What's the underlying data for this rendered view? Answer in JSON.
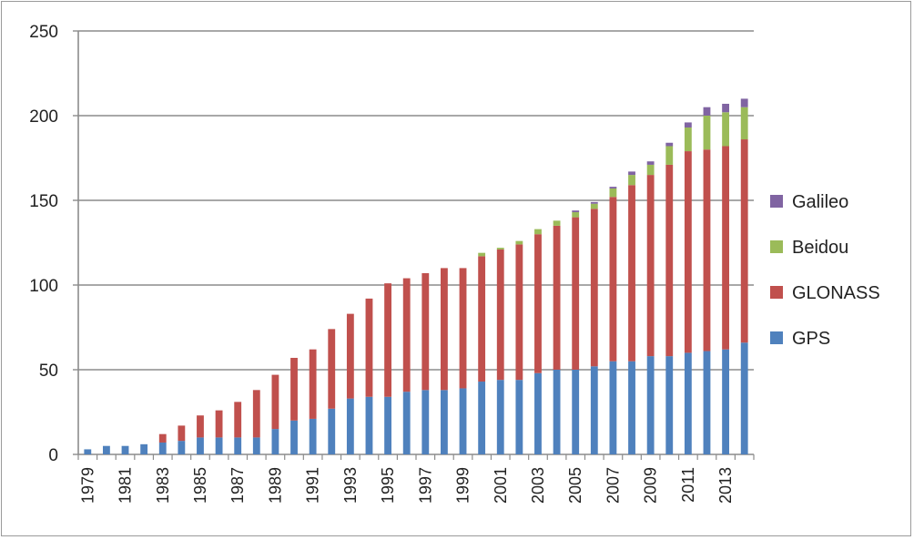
{
  "chart_data": {
    "type": "bar",
    "stacked": true,
    "categories": [
      "1979",
      "1980",
      "1981",
      "1982",
      "1983",
      "1984",
      "1985",
      "1986",
      "1987",
      "1988",
      "1989",
      "1990",
      "1991",
      "1992",
      "1993",
      "1994",
      "1995",
      "1996",
      "1997",
      "1998",
      "1999",
      "2000",
      "2001",
      "2002",
      "2003",
      "2004",
      "2005",
      "2006",
      "2007",
      "2008",
      "2009",
      "2010",
      "2011",
      "2012",
      "2013",
      "2014"
    ],
    "x_tick_labels": [
      "1979",
      "1981",
      "1983",
      "1985",
      "1987",
      "1989",
      "1991",
      "1993",
      "1995",
      "1997",
      "1999",
      "2001",
      "2003",
      "2005",
      "2007",
      "2009",
      "2011",
      "2013"
    ],
    "series": [
      {
        "name": "GPS",
        "color": "#4f81bd",
        "values": [
          3,
          5,
          5,
          6,
          7,
          8,
          10,
          10,
          10,
          10,
          15,
          20,
          21,
          27,
          33,
          34,
          34,
          37,
          38,
          38,
          39,
          43,
          44,
          44,
          48,
          50,
          50,
          52,
          55,
          55,
          58,
          58,
          60,
          61,
          62,
          66
        ]
      },
      {
        "name": "GLONASS",
        "color": "#c0504d",
        "values": [
          0,
          0,
          0,
          0,
          5,
          9,
          13,
          16,
          21,
          28,
          32,
          37,
          41,
          47,
          50,
          58,
          67,
          67,
          69,
          72,
          71,
          74,
          77,
          80,
          82,
          85,
          90,
          93,
          97,
          104,
          107,
          113,
          119,
          119,
          120,
          120
        ]
      },
      {
        "name": "Beidou",
        "color": "#9bbb59",
        "values": [
          0,
          0,
          0,
          0,
          0,
          0,
          0,
          0,
          0,
          0,
          0,
          0,
          0,
          0,
          0,
          0,
          0,
          0,
          0,
          0,
          0,
          2,
          1,
          2,
          3,
          3,
          3,
          3,
          5,
          6,
          6,
          11,
          14,
          20,
          20,
          19
        ]
      },
      {
        "name": "Galileo",
        "color": "#8064a2",
        "values": [
          0,
          0,
          0,
          0,
          0,
          0,
          0,
          0,
          0,
          0,
          0,
          0,
          0,
          0,
          0,
          0,
          0,
          0,
          0,
          0,
          0,
          0,
          0,
          0,
          0,
          0,
          1,
          1,
          1,
          2,
          2,
          2,
          3,
          5,
          5,
          5
        ]
      }
    ],
    "ylim": [
      0,
      250
    ],
    "yticks": [
      0,
      50,
      100,
      150,
      200,
      250
    ],
    "grid": true,
    "legend_position": "right",
    "legend_order": [
      "Galileo",
      "Beidou",
      "GLONASS",
      "GPS"
    ]
  }
}
